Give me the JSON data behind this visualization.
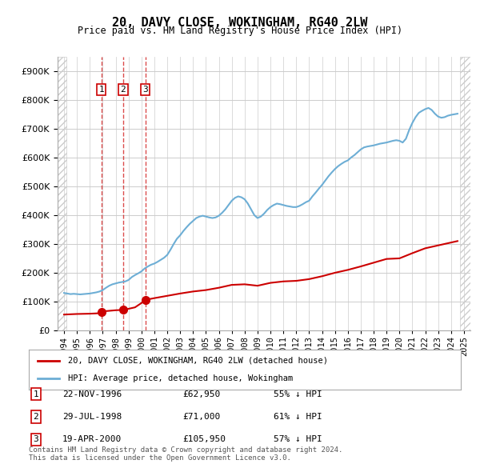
{
  "title": "20, DAVY CLOSE, WOKINGHAM, RG40 2LW",
  "subtitle": "Price paid vs. HM Land Registry's House Price Index (HPI)",
  "ylabel": "",
  "xlim": [
    1993.5,
    2025.5
  ],
  "ylim": [
    0,
    950000
  ],
  "yticks": [
    0,
    100000,
    200000,
    300000,
    400000,
    500000,
    600000,
    700000,
    800000,
    900000
  ],
  "ytick_labels": [
    "£0",
    "£100K",
    "£200K",
    "£300K",
    "£400K",
    "£500K",
    "£600K",
    "£700K",
    "£800K",
    "£900K"
  ],
  "transactions": [
    {
      "label": "1",
      "date_num": 1996.9,
      "price": 62950,
      "marker": true
    },
    {
      "label": "2",
      "date_num": 1998.58,
      "price": 71000,
      "marker": true
    },
    {
      "label": "3",
      "date_num": 2000.3,
      "price": 105950,
      "marker": true
    }
  ],
  "transaction_dates_display": [
    {
      "label": "1",
      "date": "22-NOV-1996",
      "price": "£62,950",
      "pct": "55% ↓ HPI"
    },
    {
      "label": "2",
      "date": "29-JUL-1998",
      "price": "£71,000",
      "pct": "61% ↓ HPI"
    },
    {
      "label": "3",
      "date": "19-APR-2000",
      "price": "£105,950",
      "pct": "57% ↓ HPI"
    }
  ],
  "legend_line1": "20, DAVY CLOSE, WOKINGHAM, RG40 2LW (detached house)",
  "legend_line2": "HPI: Average price, detached house, Wokingham",
  "footer": "Contains HM Land Registry data © Crown copyright and database right 2024.\nThis data is licensed under the Open Government Licence v3.0.",
  "hpi_color": "#6daed5",
  "sale_color": "#cc0000",
  "hatch_color": "#d0d0d0",
  "grid_color": "#cccccc",
  "hpi_data_x": [
    1994.0,
    1994.25,
    1994.5,
    1994.75,
    1995.0,
    1995.25,
    1995.5,
    1995.75,
    1996.0,
    1996.25,
    1996.5,
    1996.75,
    1997.0,
    1997.25,
    1997.5,
    1997.75,
    1998.0,
    1998.25,
    1998.5,
    1998.75,
    1999.0,
    1999.25,
    1999.5,
    1999.75,
    2000.0,
    2000.25,
    2000.5,
    2000.75,
    2001.0,
    2001.25,
    2001.5,
    2001.75,
    2002.0,
    2002.25,
    2002.5,
    2002.75,
    2003.0,
    2003.25,
    2003.5,
    2003.75,
    2004.0,
    2004.25,
    2004.5,
    2004.75,
    2005.0,
    2005.25,
    2005.5,
    2005.75,
    2006.0,
    2006.25,
    2006.5,
    2006.75,
    2007.0,
    2007.25,
    2007.5,
    2007.75,
    2008.0,
    2008.25,
    2008.5,
    2008.75,
    2009.0,
    2009.25,
    2009.5,
    2009.75,
    2010.0,
    2010.25,
    2010.5,
    2010.75,
    2011.0,
    2011.25,
    2011.5,
    2011.75,
    2012.0,
    2012.25,
    2012.5,
    2012.75,
    2013.0,
    2013.25,
    2013.5,
    2013.75,
    2014.0,
    2014.25,
    2014.5,
    2014.75,
    2015.0,
    2015.25,
    2015.5,
    2015.75,
    2016.0,
    2016.25,
    2016.5,
    2016.75,
    2017.0,
    2017.25,
    2017.5,
    2017.75,
    2018.0,
    2018.25,
    2018.5,
    2018.75,
    2019.0,
    2019.25,
    2019.5,
    2019.75,
    2020.0,
    2020.25,
    2020.5,
    2020.75,
    2021.0,
    2021.25,
    2021.5,
    2021.75,
    2022.0,
    2022.25,
    2022.5,
    2022.75,
    2023.0,
    2023.25,
    2023.5,
    2023.75,
    2024.0,
    2024.25,
    2024.5
  ],
  "hpi_data_y": [
    130000,
    128000,
    126000,
    127000,
    126000,
    125000,
    126000,
    127000,
    128000,
    130000,
    132000,
    135000,
    140000,
    148000,
    155000,
    160000,
    163000,
    166000,
    168000,
    170000,
    175000,
    185000,
    192000,
    198000,
    205000,
    215000,
    222000,
    228000,
    232000,
    238000,
    245000,
    252000,
    262000,
    280000,
    300000,
    318000,
    330000,
    345000,
    358000,
    370000,
    380000,
    390000,
    395000,
    398000,
    395000,
    392000,
    390000,
    392000,
    398000,
    408000,
    420000,
    435000,
    450000,
    460000,
    465000,
    462000,
    455000,
    440000,
    420000,
    400000,
    390000,
    395000,
    405000,
    418000,
    428000,
    435000,
    440000,
    438000,
    435000,
    432000,
    430000,
    428000,
    428000,
    432000,
    438000,
    445000,
    450000,
    465000,
    478000,
    492000,
    505000,
    520000,
    535000,
    548000,
    560000,
    570000,
    578000,
    585000,
    590000,
    600000,
    608000,
    618000,
    628000,
    635000,
    638000,
    640000,
    642000,
    645000,
    648000,
    650000,
    652000,
    655000,
    658000,
    660000,
    658000,
    652000,
    665000,
    695000,
    720000,
    740000,
    755000,
    762000,
    768000,
    772000,
    765000,
    752000,
    742000,
    738000,
    740000,
    745000,
    748000,
    750000,
    752000
  ],
  "sale_data_x": [
    1994.0,
    1995.0,
    1996.0,
    1996.25,
    1996.5,
    1996.75,
    1996.9,
    1997.0,
    1997.25,
    1997.75,
    1998.0,
    1998.25,
    1998.58,
    1999.0,
    1999.5,
    2000.0,
    2000.3,
    2001.0,
    2002.0,
    2003.0,
    2004.0,
    2005.0,
    2006.0,
    2007.0,
    2008.0,
    2009.0,
    2010.0,
    2011.0,
    2012.0,
    2013.0,
    2014.0,
    2015.0,
    2016.0,
    2017.0,
    2018.0,
    2019.0,
    2020.0,
    2021.0,
    2022.0,
    2023.0,
    2024.0,
    2024.5
  ],
  "sale_data_y": [
    55000,
    57000,
    58000,
    58500,
    59000,
    60000,
    62950,
    65000,
    67000,
    69000,
    70000,
    70500,
    71000,
    75000,
    80000,
    95000,
    105950,
    112000,
    120000,
    128000,
    135000,
    140000,
    148000,
    158000,
    160000,
    155000,
    165000,
    170000,
    172000,
    178000,
    188000,
    200000,
    210000,
    222000,
    235000,
    248000,
    250000,
    268000,
    285000,
    295000,
    305000,
    310000
  ],
  "background_color": "#ffffff",
  "hatch_region_end": 1994.0
}
